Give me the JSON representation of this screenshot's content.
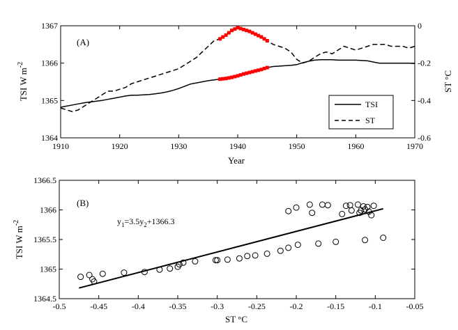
{
  "chart_data": [
    {
      "panel": "(A)",
      "type": "line",
      "xlabel": "Year",
      "xlim": [
        1910,
        1970
      ],
      "xticks": [
        "1910",
        "1920",
        "1930",
        "1940",
        "1950",
        "1960",
        "1970"
      ],
      "ylabel_left": "TSI   W m",
      "ylabel_left_sup": "-2",
      "ylim_left": [
        1364,
        1367
      ],
      "yticks_left": [
        "1364",
        "1365",
        "1366",
        "1367"
      ],
      "ylabel_right": "ST   °C",
      "ylim_right": [
        -0.6,
        0
      ],
      "yticks_right": [
        "-0.6",
        "-0.4",
        "-0.2",
        "0"
      ],
      "legend": [
        "TSI",
        "ST"
      ],
      "series": [
        {
          "name": "TSI",
          "axis": "left",
          "style": "solid",
          "x": [
            1910,
            1911,
            1912,
            1913,
            1914,
            1915,
            1916,
            1917,
            1918,
            1919,
            1920,
            1921,
            1922,
            1923,
            1924,
            1925,
            1926,
            1927,
            1928,
            1929,
            1930,
            1931,
            1932,
            1933,
            1934,
            1935,
            1936,
            1937,
            1938,
            1939,
            1940,
            1941,
            1942,
            1943,
            1944,
            1945,
            1946,
            1947,
            1948,
            1949,
            1950,
            1951,
            1952,
            1953,
            1954,
            1955,
            1956,
            1957,
            1958,
            1959,
            1960,
            1961,
            1962,
            1963,
            1964,
            1965,
            1966,
            1967,
            1968,
            1969,
            1970
          ],
          "values": [
            1364.82,
            1364.85,
            1364.88,
            1364.91,
            1364.94,
            1364.96,
            1364.98,
            1365.0,
            1365.03,
            1365.06,
            1365.09,
            1365.12,
            1365.14,
            1365.14,
            1365.15,
            1365.16,
            1365.18,
            1365.2,
            1365.23,
            1365.27,
            1365.32,
            1365.38,
            1365.44,
            1365.47,
            1365.5,
            1365.53,
            1365.55,
            1365.57,
            1365.59,
            1365.62,
            1365.66,
            1365.71,
            1365.75,
            1365.79,
            1365.83,
            1365.88,
            1365.91,
            1365.92,
            1365.93,
            1365.94,
            1365.96,
            1366.01,
            1366.05,
            1366.08,
            1366.09,
            1366.09,
            1366.09,
            1366.08,
            1366.08,
            1366.08,
            1366.08,
            1366.07,
            1366.06,
            1366.03,
            1366.0,
            1366.0,
            1366.0,
            1366.0,
            1366.0,
            1366.0,
            1365.99
          ]
        },
        {
          "name": "ST",
          "axis": "right",
          "style": "dashed",
          "x": [
            1910,
            1911,
            1912,
            1913,
            1914,
            1915,
            1916,
            1917,
            1918,
            1919,
            1920,
            1921,
            1922,
            1923,
            1924,
            1925,
            1926,
            1927,
            1928,
            1929,
            1930,
            1931,
            1932,
            1933,
            1934,
            1935,
            1936,
            1937,
            1938,
            1939,
            1940,
            1941,
            1942,
            1943,
            1944,
            1945,
            1946,
            1947,
            1948,
            1949,
            1950,
            1951,
            1952,
            1953,
            1954,
            1955,
            1956,
            1957,
            1958,
            1959,
            1960,
            1961,
            1962,
            1963,
            1964,
            1965,
            1966,
            1967,
            1968,
            1969,
            1970
          ],
          "values": [
            -0.44,
            -0.45,
            -0.46,
            -0.45,
            -0.43,
            -0.41,
            -0.39,
            -0.37,
            -0.35,
            -0.35,
            -0.34,
            -0.33,
            -0.31,
            -0.3,
            -0.29,
            -0.28,
            -0.27,
            -0.26,
            -0.25,
            -0.24,
            -0.23,
            -0.21,
            -0.19,
            -0.17,
            -0.14,
            -0.11,
            -0.08,
            -0.07,
            -0.05,
            -0.025,
            -0.01,
            -0.02,
            -0.03,
            -0.045,
            -0.06,
            -0.08,
            -0.1,
            -0.11,
            -0.12,
            -0.14,
            -0.18,
            -0.2,
            -0.19,
            -0.17,
            -0.15,
            -0.14,
            -0.15,
            -0.13,
            -0.11,
            -0.12,
            -0.13,
            -0.12,
            -0.11,
            -0.1,
            -0.1,
            -0.1,
            -0.11,
            -0.11,
            -0.11,
            -0.12,
            -0.11
          ]
        }
      ],
      "highlight": {
        "color": "#ff0000",
        "range": [
          1937,
          1945
        ],
        "series": [
          "TSI",
          "ST"
        ]
      }
    },
    {
      "panel": "(B)",
      "type": "scatter",
      "xlabel": "ST     °C",
      "xlim": [
        -0.5,
        -0.05
      ],
      "xticks": [
        "-0.5",
        "-0.45",
        "-0.4",
        "-0.35",
        "-0.3",
        "-0.25",
        "-0.2",
        "-0.15",
        "-0.1",
        "-0.05"
      ],
      "ylabel": "TSI   W m",
      "ylabel_sup": "-2",
      "ylim": [
        1364.5,
        1366.5
      ],
      "yticks": [
        "1364.5",
        "1365",
        "1365.5",
        "1366",
        "1366.5"
      ],
      "equation": "=3.5y",
      "equation_tail": "+1366.3",
      "equation_y1": "y",
      "equation_sub1": "1",
      "equation_sub2": "2",
      "fit_line": {
        "x": [
          -0.475,
          -0.09
        ],
        "y": [
          1364.68,
          1366.02
        ]
      },
      "points": [
        {
          "x": -0.473,
          "y": 1364.87
        },
        {
          "x": -0.462,
          "y": 1364.9
        },
        {
          "x": -0.458,
          "y": 1364.83
        },
        {
          "x": -0.456,
          "y": 1364.79
        },
        {
          "x": -0.445,
          "y": 1364.92
        },
        {
          "x": -0.418,
          "y": 1364.94
        },
        {
          "x": -0.392,
          "y": 1364.95
        },
        {
          "x": -0.373,
          "y": 1364.99
        },
        {
          "x": -0.36,
          "y": 1365.01
        },
        {
          "x": -0.35,
          "y": 1365.04
        },
        {
          "x": -0.348,
          "y": 1365.08
        },
        {
          "x": -0.343,
          "y": 1365.11
        },
        {
          "x": -0.328,
          "y": 1365.13
        },
        {
          "x": -0.302,
          "y": 1365.15
        },
        {
          "x": -0.3,
          "y": 1365.15
        },
        {
          "x": -0.287,
          "y": 1365.16
        },
        {
          "x": -0.272,
          "y": 1365.18
        },
        {
          "x": -0.262,
          "y": 1365.22
        },
        {
          "x": -0.252,
          "y": 1365.23
        },
        {
          "x": -0.237,
          "y": 1365.26
        },
        {
          "x": -0.22,
          "y": 1365.31
        },
        {
          "x": -0.21,
          "y": 1365.36
        },
        {
          "x": -0.198,
          "y": 1365.41
        },
        {
          "x": -0.172,
          "y": 1365.43
        },
        {
          "x": -0.15,
          "y": 1365.46
        },
        {
          "x": -0.113,
          "y": 1365.49
        },
        {
          "x": -0.09,
          "y": 1365.53
        },
        {
          "x": -0.21,
          "y": 1365.98
        },
        {
          "x": -0.2,
          "y": 1366.04
        },
        {
          "x": -0.183,
          "y": 1366.09
        },
        {
          "x": -0.18,
          "y": 1365.95
        },
        {
          "x": -0.167,
          "y": 1366.09
        },
        {
          "x": -0.16,
          "y": 1366.08
        },
        {
          "x": -0.142,
          "y": 1365.93
        },
        {
          "x": -0.137,
          "y": 1366.07
        },
        {
          "x": -0.132,
          "y": 1366.08
        },
        {
          "x": -0.13,
          "y": 1365.99
        },
        {
          "x": -0.122,
          "y": 1366.09
        },
        {
          "x": -0.12,
          "y": 1365.95
        },
        {
          "x": -0.118,
          "y": 1365.99
        },
        {
          "x": -0.115,
          "y": 1366.06
        },
        {
          "x": -0.113,
          "y": 1366.01
        },
        {
          "x": -0.11,
          "y": 1366.05
        },
        {
          "x": -0.108,
          "y": 1365.97
        },
        {
          "x": -0.105,
          "y": 1365.91
        },
        {
          "x": -0.102,
          "y": 1366.07
        }
      ]
    }
  ]
}
